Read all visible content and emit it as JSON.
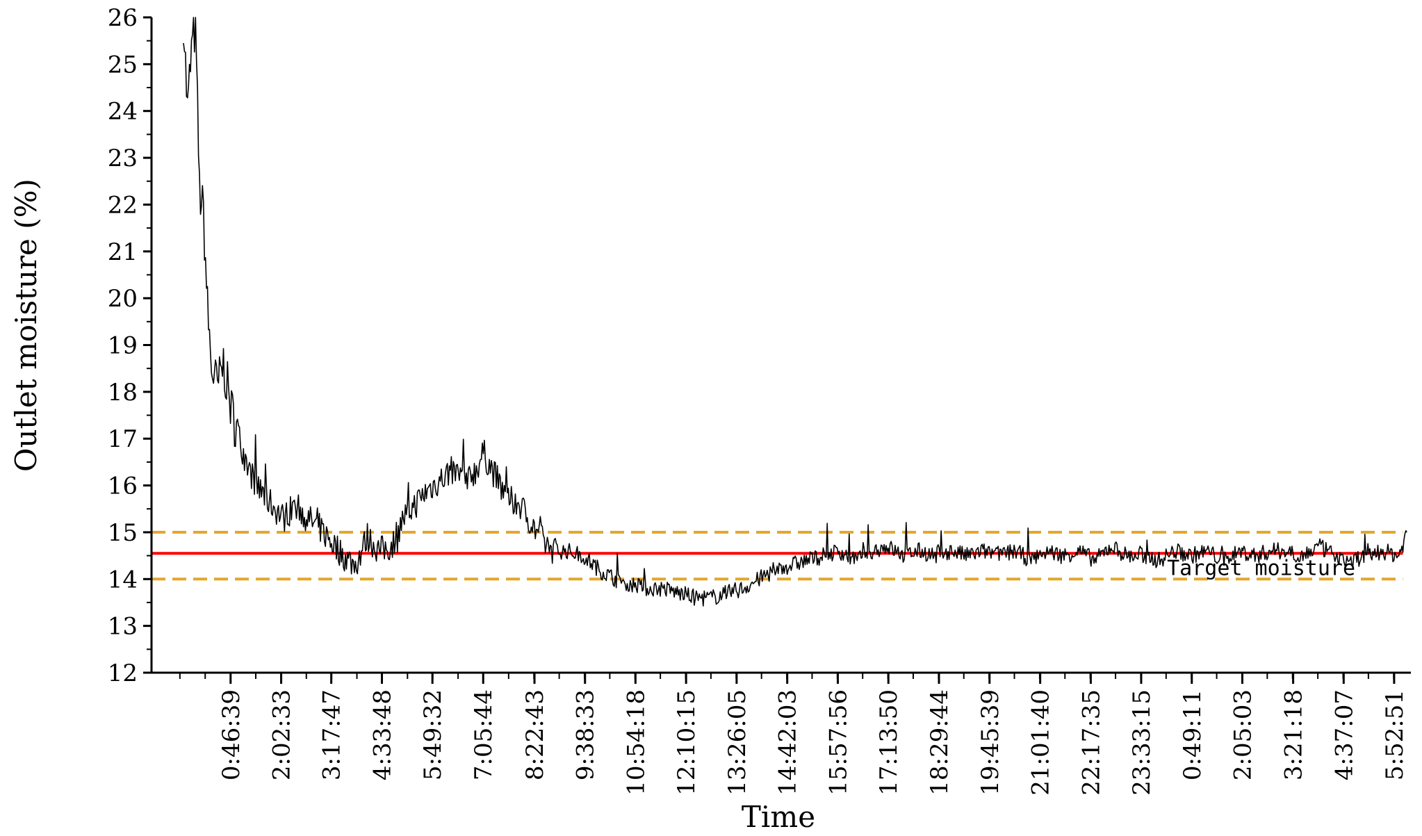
{
  "chart_data": {
    "type": "line",
    "title": "",
    "xlabel": "Time",
    "ylabel": "Outlet moisture (%)",
    "ylim": [
      12,
      26
    ],
    "yticks": [
      12,
      13,
      14,
      15,
      16,
      17,
      18,
      19,
      20,
      21,
      22,
      23,
      24,
      25,
      26
    ],
    "xlim_hours": [
      -1.2,
      30.3
    ],
    "x_ticks": [
      {
        "h": 0.778,
        "label": "0:46:39"
      },
      {
        "h": 2.043,
        "label": "2:02:33"
      },
      {
        "h": 3.296,
        "label": "3:17:47"
      },
      {
        "h": 4.563,
        "label": "4:33:48"
      },
      {
        "h": 5.826,
        "label": "5:49:32"
      },
      {
        "h": 7.096,
        "label": "7:05:44"
      },
      {
        "h": 8.379,
        "label": "8:22:43"
      },
      {
        "h": 9.643,
        "label": "9:38:33"
      },
      {
        "h": 10.905,
        "label": "10:54:18"
      },
      {
        "h": 12.171,
        "label": "12:10:15"
      },
      {
        "h": 13.435,
        "label": "13:26:05"
      },
      {
        "h": 14.701,
        "label": "14:42:03"
      },
      {
        "h": 15.966,
        "label": "15:57:56"
      },
      {
        "h": 17.231,
        "label": "17:13:50"
      },
      {
        "h": 18.496,
        "label": "18:29:44"
      },
      {
        "h": 19.761,
        "label": "19:45:39"
      },
      {
        "h": 21.028,
        "label": "21:01:40"
      },
      {
        "h": 22.293,
        "label": "22:17:35"
      },
      {
        "h": 23.554,
        "label": "23:33:15"
      },
      {
        "h": 24.82,
        "label": "0:49:11"
      },
      {
        "h": 26.084,
        "label": "2:05:03"
      },
      {
        "h": 27.355,
        "label": "3:21:18"
      },
      {
        "h": 28.619,
        "label": "4:37:07"
      },
      {
        "h": 29.881,
        "label": "5:52:51"
      }
    ],
    "series": [
      {
        "color": "#000000",
        "x_hours": [
          -0.4,
          -0.3,
          -0.2,
          -0.1,
          0.0,
          0.1,
          0.2,
          0.3,
          0.45,
          0.6,
          0.8,
          1.0,
          1.2,
          1.5,
          1.8,
          2.1,
          2.4,
          2.7,
          3.0,
          3.3,
          3.6,
          3.9,
          4.2,
          4.5,
          4.8,
          5.1,
          5.4,
          5.7,
          6.0,
          6.3,
          6.6,
          6.9,
          7.1,
          7.4,
          7.7,
          8.0,
          8.3,
          8.6,
          8.9,
          9.2,
          9.6,
          10.0,
          10.4,
          10.8,
          11.2,
          11.6,
          12.0,
          12.4,
          12.8,
          13.2,
          13.6,
          14.0,
          14.4,
          14.8,
          15.2,
          15.6,
          16.0,
          16.4,
          16.8,
          17.2,
          17.6,
          18.0,
          18.4,
          18.8,
          19.2,
          19.6,
          20.0,
          20.4,
          20.8,
          21.2,
          21.6,
          22.0,
          22.4,
          22.8,
          23.2,
          23.6,
          24.0,
          24.4,
          24.8,
          25.2,
          25.6,
          26.0,
          26.4,
          26.8,
          27.2,
          27.6,
          28.0,
          28.4,
          28.8,
          29.2,
          29.6,
          30.0,
          30.2
        ],
        "y": [
          26.0,
          24.0,
          25.3,
          25.8,
          22.3,
          21.8,
          19.8,
          18.5,
          18.1,
          18.6,
          17.6,
          17.0,
          16.4,
          15.9,
          15.6,
          15.3,
          15.6,
          15.3,
          15.1,
          14.8,
          14.5,
          14.3,
          14.9,
          14.6,
          14.7,
          15.3,
          15.6,
          15.9,
          16.1,
          16.3,
          16.2,
          16.3,
          16.7,
          16.2,
          15.7,
          15.6,
          15.2,
          14.8,
          14.6,
          14.6,
          14.5,
          14.2,
          14.0,
          13.9,
          13.8,
          13.8,
          13.7,
          13.6,
          13.6,
          13.7,
          13.8,
          14.0,
          14.2,
          14.3,
          14.4,
          14.5,
          14.6,
          14.4,
          14.6,
          14.7,
          14.5,
          14.6,
          14.5,
          14.6,
          14.5,
          14.6,
          14.5,
          14.6,
          14.4,
          14.6,
          14.5,
          14.6,
          14.4,
          14.7,
          14.5,
          14.5,
          14.4,
          14.6,
          14.5,
          14.6,
          14.4,
          14.6,
          14.5,
          14.6,
          14.6,
          14.5,
          14.7,
          14.5,
          14.4,
          14.5,
          14.6,
          14.5,
          15.0
        ]
      }
    ],
    "reference_lines": [
      {
        "y": 14.55,
        "color": "#ff0000",
        "style": "solid"
      },
      {
        "y": 15.0,
        "color": "#e3a62b",
        "style": "dashed"
      },
      {
        "y": 14.0,
        "color": "#e3a62b",
        "style": "dashed"
      }
    ],
    "annotations": [
      {
        "text": "Target moisture",
        "x_hours": 24.2,
        "y": 14.25
      }
    ]
  }
}
